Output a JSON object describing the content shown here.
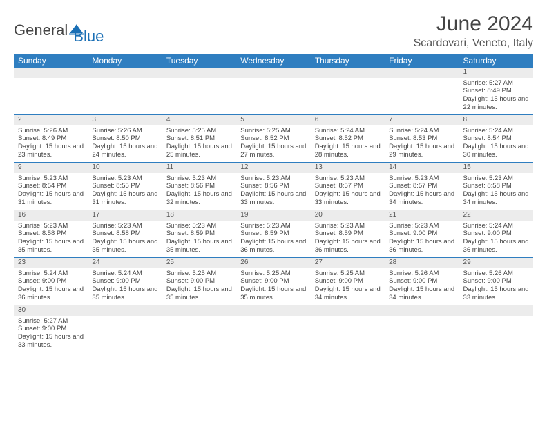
{
  "logo": {
    "general": "General",
    "blue": "Blue"
  },
  "title": "June 2024",
  "location": "Scardovari, Veneto, Italy",
  "colors": {
    "header_bg": "#2f7ec0",
    "header_text": "#ffffff",
    "row_border": "#2f7ec0",
    "daynum_bg": "#ececec",
    "text": "#444444",
    "logo_blue": "#1a6fb5"
  },
  "day_headers": [
    "Sunday",
    "Monday",
    "Tuesday",
    "Wednesday",
    "Thursday",
    "Friday",
    "Saturday"
  ],
  "weeks": [
    [
      null,
      null,
      null,
      null,
      null,
      null,
      {
        "n": "1",
        "sr": "5:27 AM",
        "ss": "8:49 PM",
        "dl": "15 hours and 22 minutes."
      }
    ],
    [
      {
        "n": "2",
        "sr": "5:26 AM",
        "ss": "8:49 PM",
        "dl": "15 hours and 23 minutes."
      },
      {
        "n": "3",
        "sr": "5:26 AM",
        "ss": "8:50 PM",
        "dl": "15 hours and 24 minutes."
      },
      {
        "n": "4",
        "sr": "5:25 AM",
        "ss": "8:51 PM",
        "dl": "15 hours and 25 minutes."
      },
      {
        "n": "5",
        "sr": "5:25 AM",
        "ss": "8:52 PM",
        "dl": "15 hours and 27 minutes."
      },
      {
        "n": "6",
        "sr": "5:24 AM",
        "ss": "8:52 PM",
        "dl": "15 hours and 28 minutes."
      },
      {
        "n": "7",
        "sr": "5:24 AM",
        "ss": "8:53 PM",
        "dl": "15 hours and 29 minutes."
      },
      {
        "n": "8",
        "sr": "5:24 AM",
        "ss": "8:54 PM",
        "dl": "15 hours and 30 minutes."
      }
    ],
    [
      {
        "n": "9",
        "sr": "5:23 AM",
        "ss": "8:54 PM",
        "dl": "15 hours and 31 minutes."
      },
      {
        "n": "10",
        "sr": "5:23 AM",
        "ss": "8:55 PM",
        "dl": "15 hours and 31 minutes."
      },
      {
        "n": "11",
        "sr": "5:23 AM",
        "ss": "8:56 PM",
        "dl": "15 hours and 32 minutes."
      },
      {
        "n": "12",
        "sr": "5:23 AM",
        "ss": "8:56 PM",
        "dl": "15 hours and 33 minutes."
      },
      {
        "n": "13",
        "sr": "5:23 AM",
        "ss": "8:57 PM",
        "dl": "15 hours and 33 minutes."
      },
      {
        "n": "14",
        "sr": "5:23 AM",
        "ss": "8:57 PM",
        "dl": "15 hours and 34 minutes."
      },
      {
        "n": "15",
        "sr": "5:23 AM",
        "ss": "8:58 PM",
        "dl": "15 hours and 34 minutes."
      }
    ],
    [
      {
        "n": "16",
        "sr": "5:23 AM",
        "ss": "8:58 PM",
        "dl": "15 hours and 35 minutes."
      },
      {
        "n": "17",
        "sr": "5:23 AM",
        "ss": "8:58 PM",
        "dl": "15 hours and 35 minutes."
      },
      {
        "n": "18",
        "sr": "5:23 AM",
        "ss": "8:59 PM",
        "dl": "15 hours and 35 minutes."
      },
      {
        "n": "19",
        "sr": "5:23 AM",
        "ss": "8:59 PM",
        "dl": "15 hours and 36 minutes."
      },
      {
        "n": "20",
        "sr": "5:23 AM",
        "ss": "8:59 PM",
        "dl": "15 hours and 36 minutes."
      },
      {
        "n": "21",
        "sr": "5:23 AM",
        "ss": "9:00 PM",
        "dl": "15 hours and 36 minutes."
      },
      {
        "n": "22",
        "sr": "5:24 AM",
        "ss": "9:00 PM",
        "dl": "15 hours and 36 minutes."
      }
    ],
    [
      {
        "n": "23",
        "sr": "5:24 AM",
        "ss": "9:00 PM",
        "dl": "15 hours and 36 minutes."
      },
      {
        "n": "24",
        "sr": "5:24 AM",
        "ss": "9:00 PM",
        "dl": "15 hours and 35 minutes."
      },
      {
        "n": "25",
        "sr": "5:25 AM",
        "ss": "9:00 PM",
        "dl": "15 hours and 35 minutes."
      },
      {
        "n": "26",
        "sr": "5:25 AM",
        "ss": "9:00 PM",
        "dl": "15 hours and 35 minutes."
      },
      {
        "n": "27",
        "sr": "5:25 AM",
        "ss": "9:00 PM",
        "dl": "15 hours and 34 minutes."
      },
      {
        "n": "28",
        "sr": "5:26 AM",
        "ss": "9:00 PM",
        "dl": "15 hours and 34 minutes."
      },
      {
        "n": "29",
        "sr": "5:26 AM",
        "ss": "9:00 PM",
        "dl": "15 hours and 33 minutes."
      }
    ],
    [
      {
        "n": "30",
        "sr": "5:27 AM",
        "ss": "9:00 PM",
        "dl": "15 hours and 33 minutes."
      },
      null,
      null,
      null,
      null,
      null,
      null
    ]
  ],
  "labels": {
    "sunrise": "Sunrise:",
    "sunset": "Sunset:",
    "daylight": "Daylight:"
  }
}
